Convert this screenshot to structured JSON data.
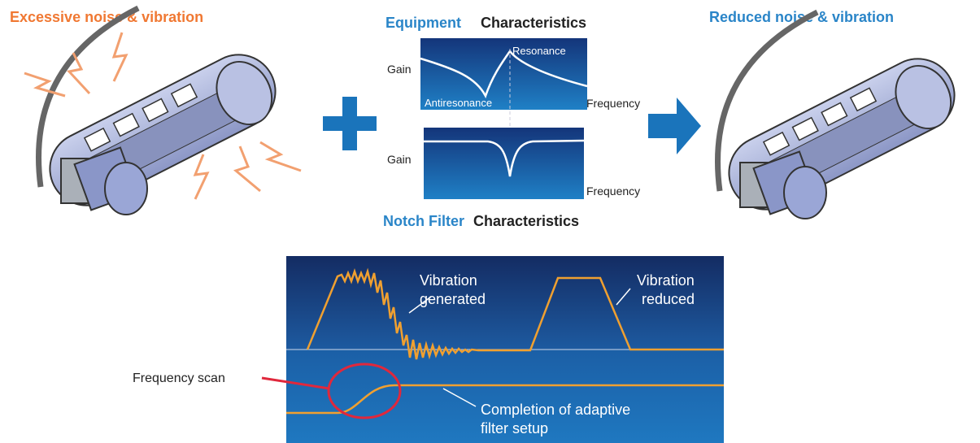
{
  "left": {
    "title": "Excessive noise & vibration"
  },
  "right": {
    "title": "Reduced noise & vibration"
  },
  "equipment_chart": {
    "title_highlight": "Equipment",
    "title_rest": "Characteristics",
    "y_label": "Gain",
    "x_label": "Frequency",
    "resonance": "Resonance",
    "antiresonance": "Antiresonance"
  },
  "notch_chart": {
    "title_highlight": "Notch Filter",
    "title_rest": "Characteristics",
    "y_label": "Gain",
    "x_label": "Frequency"
  },
  "timing_chart": {
    "vibration_generated": [
      "Vibration",
      "generated"
    ],
    "vibration_reduced": [
      "Vibration",
      "reduced"
    ],
    "frequency_scan": "Frequency scan",
    "completion": [
      "Completion of adaptive",
      "filter setup"
    ]
  }
}
